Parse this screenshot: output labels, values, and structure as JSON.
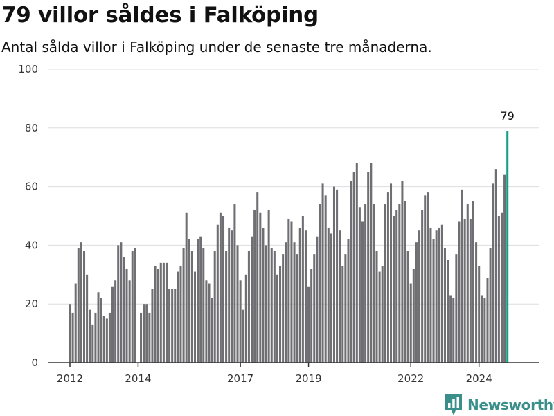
{
  "header": {
    "title": "79 villor såldes i Falköping",
    "subtitle": "Antal sålda villor i Falköping under de senaste tre månaderna."
  },
  "brand": {
    "name": "Newsworthy",
    "icon": "newsworthy-logo-icon",
    "color": "#3b8f8a"
  },
  "colors": {
    "bar": "#6f6e73",
    "highlight": "#13a08b"
  },
  "chart_data": {
    "type": "bar",
    "title": "79 villor såldes i Falköping",
    "subtitle": "Antal sålda villor i Falköping under de senaste tre månaderna.",
    "xlabel": "",
    "ylabel": "",
    "ylim": [
      0,
      100
    ],
    "yticks": [
      0,
      20,
      40,
      60,
      80,
      100
    ],
    "xticks": [
      "2012",
      "2014",
      "2017",
      "2019",
      "2022",
      "2024"
    ],
    "grid": true,
    "x_start": "2012-01",
    "x_end": "2025-02",
    "highlight_label": "79",
    "values": [
      20,
      17,
      27,
      39,
      41,
      38,
      30,
      18,
      13,
      17,
      24,
      22,
      16,
      15,
      17,
      26,
      28,
      40,
      41,
      36,
      32,
      28,
      38,
      39,
      null,
      17,
      20,
      20,
      17,
      25,
      33,
      32,
      34,
      34,
      34,
      25,
      25,
      25,
      31,
      33,
      39,
      51,
      42,
      38,
      31,
      42,
      43,
      39,
      28,
      27,
      22,
      38,
      47,
      51,
      50,
      38,
      46,
      45,
      54,
      40,
      28,
      18,
      30,
      38,
      43,
      52,
      58,
      51,
      46,
      40,
      52,
      39,
      38,
      30,
      33,
      37,
      41,
      49,
      48,
      41,
      37,
      46,
      50,
      45,
      26,
      32,
      37,
      43,
      54,
      61,
      57,
      46,
      44,
      60,
      59,
      45,
      33,
      37,
      42,
      62,
      65,
      68,
      53,
      48,
      54,
      65,
      68,
      54,
      38,
      31,
      33,
      54,
      58,
      61,
      50,
      52,
      54,
      62,
      55,
      38,
      27,
      32,
      41,
      45,
      52,
      57,
      58,
      46,
      42,
      45,
      46,
      47,
      39,
      35,
      23,
      22,
      37,
      48,
      59,
      49,
      54,
      49,
      55,
      41,
      33,
      23,
      22,
      29,
      39,
      61,
      66,
      50,
      51,
      64,
      79
    ]
  }
}
